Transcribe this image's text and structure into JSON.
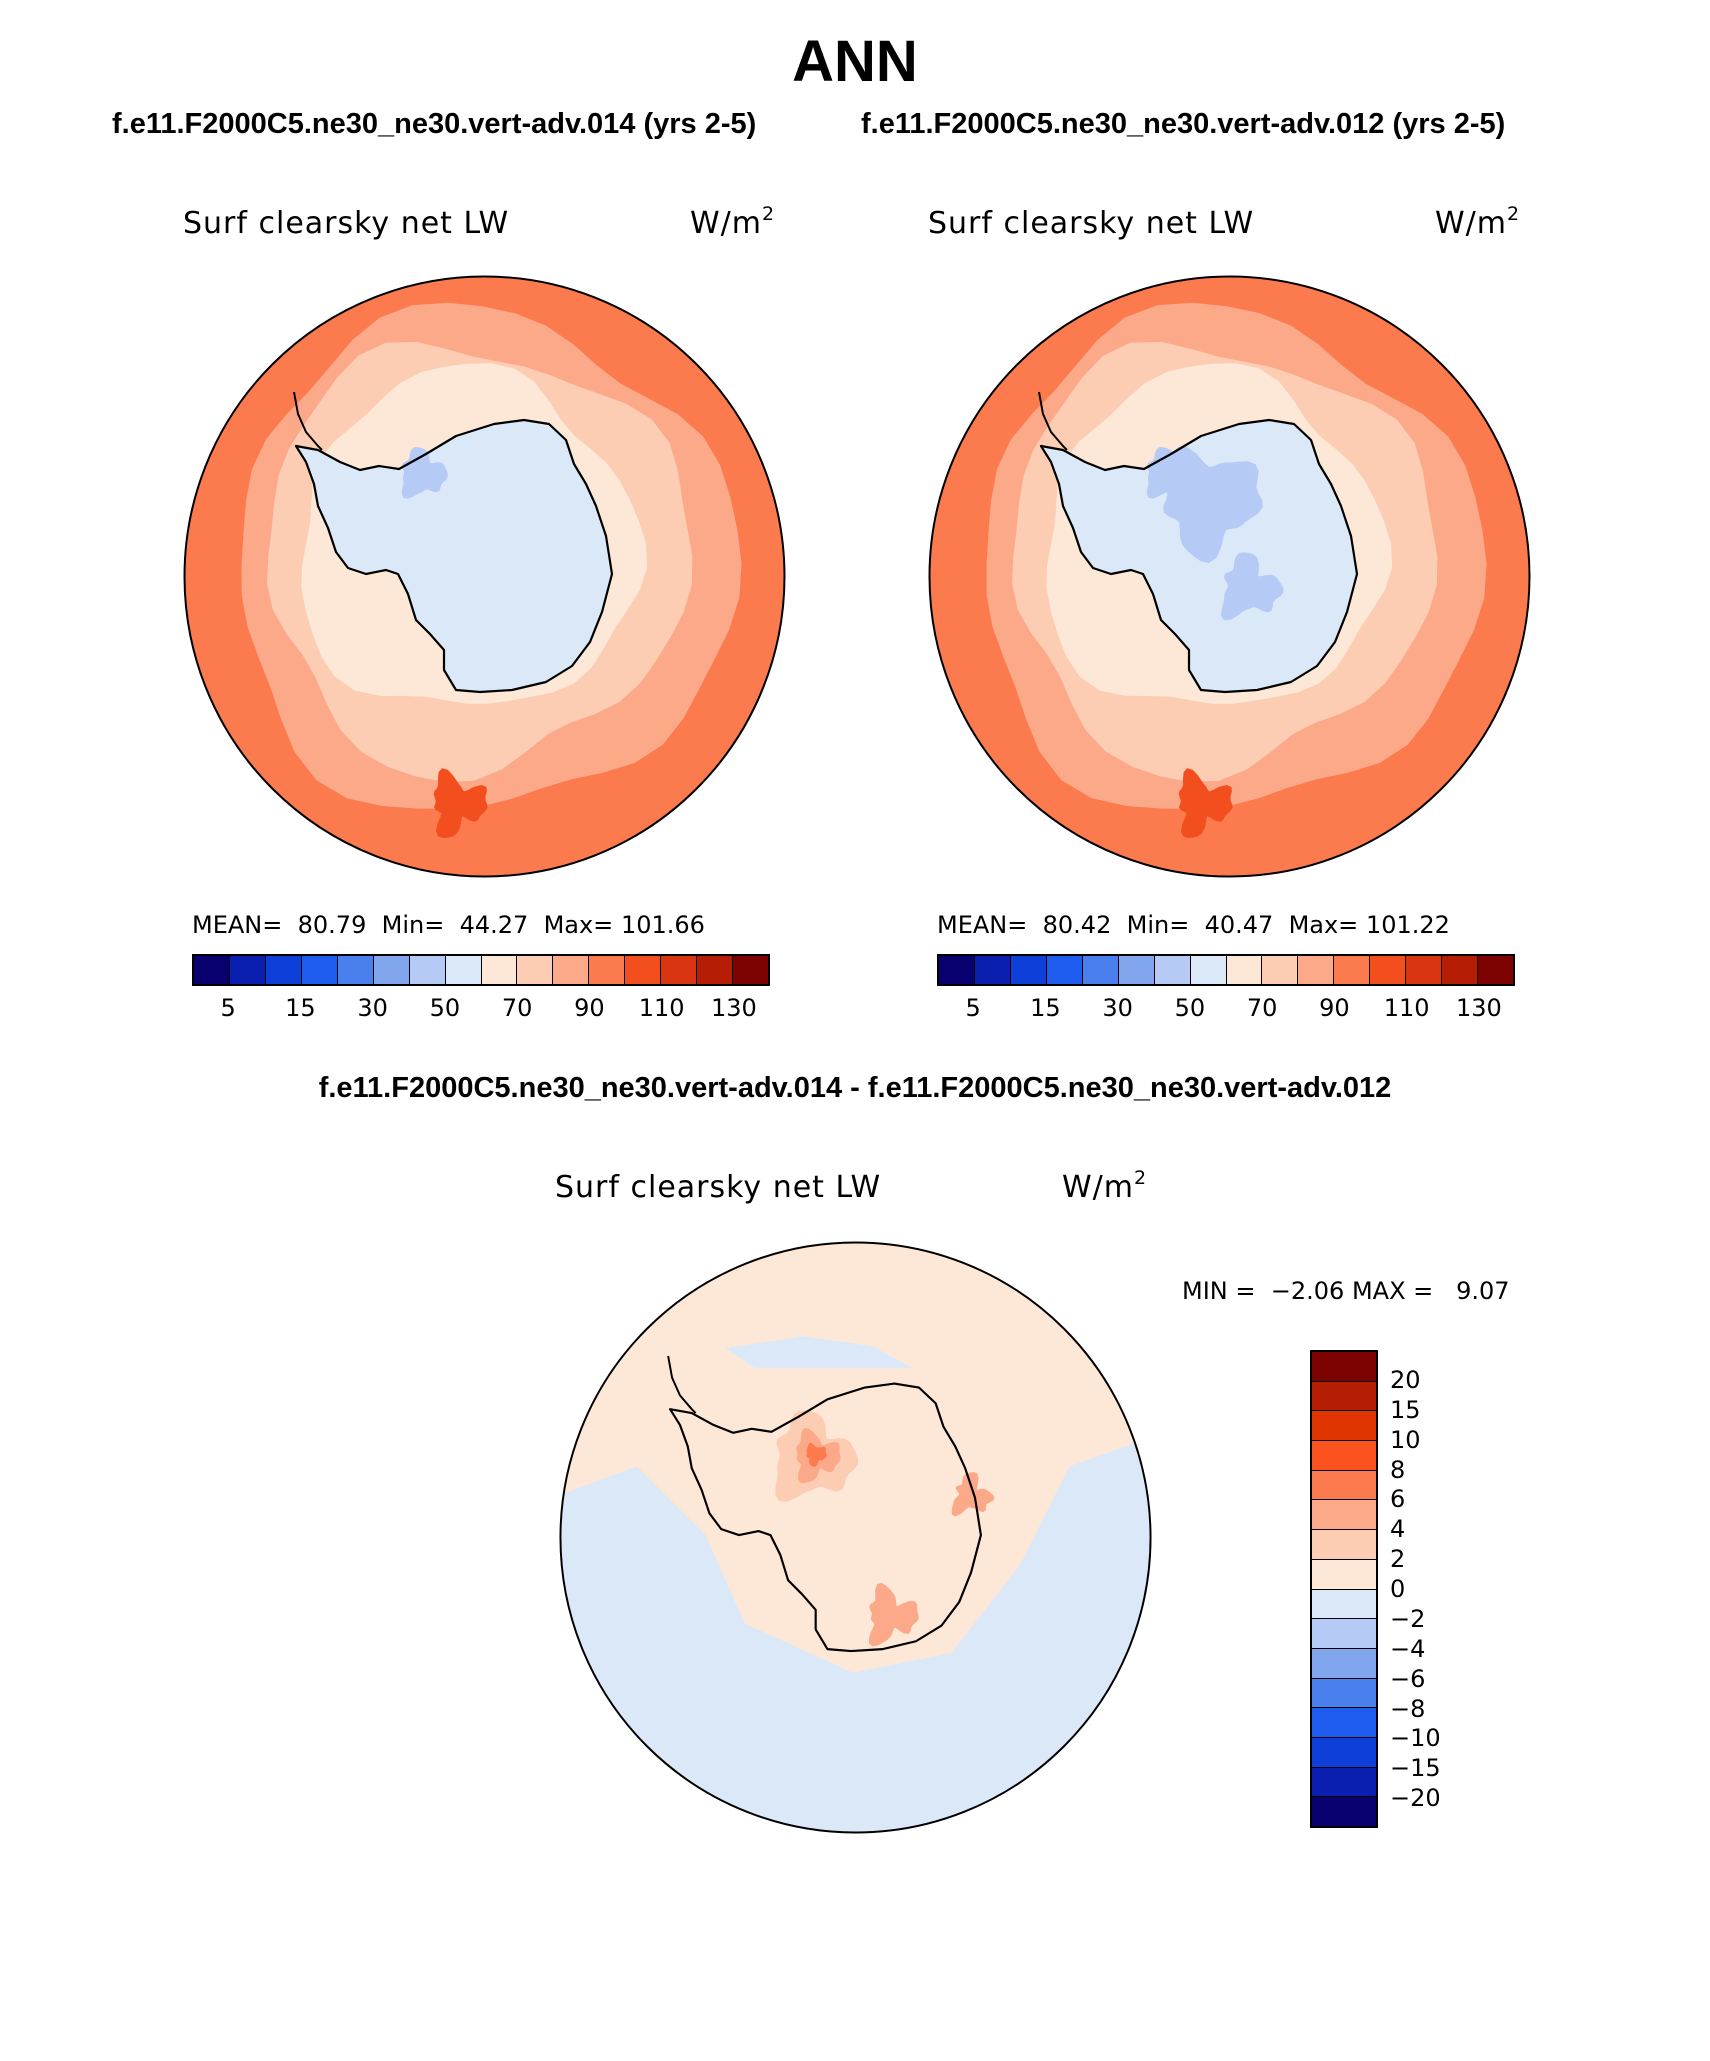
{
  "title": "ANN",
  "cases": {
    "left": "f.e11.F2000C5.ne30_ne30.vert-adv.014 (yrs 2-5)",
    "right": "f.e11.F2000C5.ne30_ne30.vert-adv.012 (yrs 2-5)"
  },
  "diff_title": "f.e11.F2000C5.ne30_ne30.vert-adv.014 - f.e11.F2000C5.ne30_ne30.vert-adv.012",
  "variable": "Surf clearsky net LW",
  "units_base": "W/m",
  "units_exp": "2",
  "panels": [
    {
      "mean_label": "MEAN=",
      "mean": "80.79",
      "min_label": "Min=",
      "min": "44.27",
      "max_label": "Max=",
      "max": "101.66"
    },
    {
      "mean_label": "MEAN=",
      "mean": "80.42",
      "min_label": "Min=",
      "min": "40.47",
      "max_label": "Max=",
      "max": "101.22"
    }
  ],
  "diff_stats": {
    "min_label": "MIN =",
    "min": "−2.06",
    "max_label": "MAX =",
    "max": "9.07"
  },
  "abs_colorbar": {
    "colors": [
      "#08006e",
      "#0a1fb0",
      "#0e3fd8",
      "#1e5cf0",
      "#4a80ee",
      "#82a6ee",
      "#b5caf5",
      "#dbe8f8",
      "#fde8d8",
      "#fcccb3",
      "#fca98a",
      "#fb7a4e",
      "#f34f1e",
      "#d83510",
      "#b51e05",
      "#7d0202"
    ],
    "labels": [
      "5",
      "15",
      "30",
      "50",
      "70",
      "90",
      "110",
      "130"
    ]
  },
  "diff_colorbar": {
    "colors": [
      "#7d0202",
      "#b51e05",
      "#e03500",
      "#fb5220",
      "#fb7a4e",
      "#fca98a",
      "#fcccb3",
      "#fde8d8",
      "#dbe8f8",
      "#b5caf5",
      "#82a6ee",
      "#4a80ee",
      "#1e5cf0",
      "#0e3fd8",
      "#0a1fb0",
      "#08006e"
    ],
    "labels": [
      "20",
      "15",
      "10",
      "8",
      "6",
      "4",
      "2",
      "0",
      "−2",
      "−4",
      "−6",
      "−8",
      "−10",
      "−15",
      "−20"
    ]
  },
  "map_colors": {
    "ocean": "#fb7a4e",
    "band1": "#fca98a",
    "band2": "#fcccb3",
    "coast": "#fde8d8",
    "ice": "#dbe8f8",
    "icedeep": "#b5caf5",
    "hot": "#f34f1e",
    "diff_base": "#fde8d8",
    "diff_neg": "#dbe8f8",
    "diff_pos1": "#fcccb3",
    "diff_pos2": "#fca98a",
    "diff_pos3": "#fb7a4e"
  }
}
